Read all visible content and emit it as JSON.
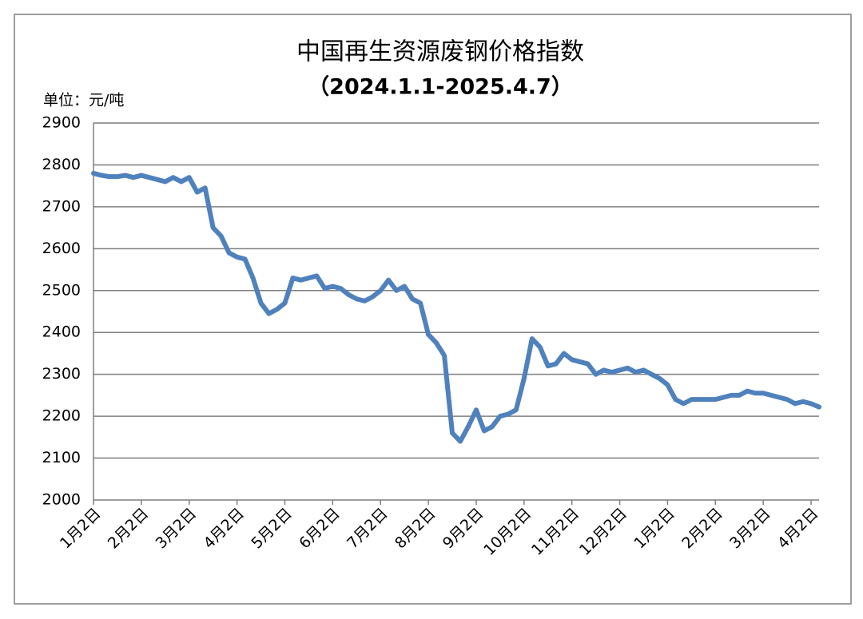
{
  "chart_data": {
    "type": "line",
    "title": "中国再生资源废钢价格指数",
    "subtitle": "（2024.1.1-2025.4.7）",
    "y_label": "单位：元/吨",
    "categories": [
      "1月2日",
      null,
      null,
      null,
      null,
      null,
      "2月2日",
      null,
      null,
      null,
      null,
      null,
      "3月2日",
      null,
      null,
      null,
      null,
      null,
      "4月2日",
      null,
      null,
      null,
      null,
      null,
      "5月2日",
      null,
      null,
      null,
      null,
      null,
      "6月2日",
      null,
      null,
      null,
      null,
      null,
      "7月2日",
      null,
      null,
      null,
      null,
      null,
      "8月2日",
      null,
      null,
      null,
      null,
      null,
      "9月2日",
      null,
      null,
      null,
      null,
      null,
      "10月2日",
      null,
      null,
      null,
      null,
      null,
      "11月2日",
      null,
      null,
      null,
      null,
      null,
      "12月2日",
      null,
      null,
      null,
      null,
      null,
      "1月2日",
      null,
      null,
      null,
      null,
      null,
      "2月2日",
      null,
      null,
      null,
      null,
      null,
      "3月2日",
      null,
      null,
      null,
      null,
      null,
      "4月2日",
      null
    ],
    "series": [
      {
        "name": "中国再生资源废钢价格指数",
        "color": "#4f81bd",
        "values": [
          2780,
          2775,
          2772,
          2772,
          2775,
          2770,
          2775,
          2770,
          2765,
          2760,
          2770,
          2760,
          2770,
          2735,
          2745,
          2650,
          2630,
          2590,
          2580,
          2575,
          2530,
          2470,
          2445,
          2455,
          2470,
          2530,
          2525,
          2530,
          2535,
          2505,
          2510,
          2505,
          2490,
          2480,
          2475,
          2485,
          2500,
          2525,
          2500,
          2510,
          2480,
          2470,
          2395,
          2375,
          2345,
          2160,
          2140,
          2175,
          2215,
          2165,
          2175,
          2200,
          2205,
          2215,
          2290,
          2385,
          2365,
          2320,
          2325,
          2350,
          2335,
          2330,
          2325,
          2300,
          2310,
          2305,
          2310,
          2315,
          2305,
          2310,
          2300,
          2290,
          2275,
          2240,
          2230,
          2240,
          2240,
          2240,
          2240,
          2245,
          2250,
          2250,
          2260,
          2255,
          2255,
          2250,
          2245,
          2240,
          2230,
          2235,
          2230,
          2222
        ]
      }
    ],
    "ylim": [
      2000,
      2900
    ],
    "yticks": [
      2000,
      2100,
      2200,
      2300,
      2400,
      2500,
      2600,
      2700,
      2800,
      2900
    ],
    "grid": true
  }
}
